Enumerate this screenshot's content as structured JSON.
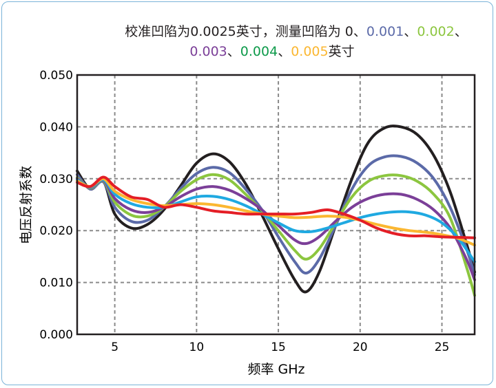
{
  "chart_data": {
    "type": "line",
    "title_line1": [
      {
        "text": "校准凹陷为0.0025英寸，测量凹陷为 0、",
        "color": "#231f20"
      },
      {
        "text": "0.001",
        "color": "#5b6aa8"
      },
      {
        "text": "、",
        "color": "#231f20"
      },
      {
        "text": "0.002",
        "color": "#8cc63f"
      },
      {
        "text": "、",
        "color": "#231f20"
      }
    ],
    "title_line2": [
      {
        "text": "0.003",
        "color": "#7b3f98"
      },
      {
        "text": "、",
        "color": "#231f20"
      },
      {
        "text": "0.004",
        "color": "#0d9a4a"
      },
      {
        "text": "、",
        "color": "#231f20"
      },
      {
        "text": "0.005",
        "color": "#fbb731"
      },
      {
        "text": "英寸",
        "color": "#231f20"
      }
    ],
    "xlabel": "频率 GHz",
    "ylabel": "电压反射系数",
    "xlim": [
      2.7,
      27
    ],
    "ylim": [
      0,
      0.05
    ],
    "xticks": [
      5,
      10,
      15,
      20,
      25
    ],
    "yticks": [
      0.0,
      0.01,
      0.02,
      0.03,
      0.04,
      0.05
    ],
    "ytick_labels": [
      "0.000",
      "0.010",
      "0.020",
      "0.030",
      "0.040",
      "0.050"
    ],
    "grid": true,
    "series": [
      {
        "color": "#231f20",
        "x": [
          2.7,
          3.5,
          4.3,
          5.0,
          6.0,
          7.0,
          8.0,
          9.0,
          10.0,
          11.0,
          12.0,
          13.0,
          14.0,
          15.0,
          16.0,
          16.7,
          17.5,
          18.5,
          19.5,
          20.5,
          21.5,
          22.5,
          23.5,
          24.5,
          25.5,
          26.5,
          27.0
        ],
        "y": [
          0.0315,
          0.028,
          0.0295,
          0.0232,
          0.0205,
          0.0212,
          0.024,
          0.0285,
          0.033,
          0.0348,
          0.0333,
          0.029,
          0.023,
          0.0165,
          0.0105,
          0.0082,
          0.012,
          0.021,
          0.03,
          0.037,
          0.0398,
          0.04,
          0.0385,
          0.0345,
          0.0275,
          0.0175,
          0.012
        ]
      },
      {
        "color": "#5b6aa8",
        "x": [
          2.7,
          3.5,
          4.3,
          5.0,
          6.0,
          7.0,
          8.0,
          9.0,
          10.0,
          11.0,
          12.0,
          13.0,
          14.0,
          15.0,
          16.0,
          16.7,
          17.5,
          18.5,
          19.5,
          20.5,
          21.5,
          22.5,
          23.5,
          24.5,
          25.5,
          26.5,
          27.0
        ],
        "y": [
          0.0308,
          0.028,
          0.0294,
          0.0245,
          0.0218,
          0.022,
          0.0245,
          0.028,
          0.031,
          0.0322,
          0.0312,
          0.028,
          0.024,
          0.0188,
          0.014,
          0.0118,
          0.0145,
          0.021,
          0.028,
          0.0325,
          0.0342,
          0.0343,
          0.033,
          0.03,
          0.0245,
          0.0165,
          0.0115
        ]
      },
      {
        "color": "#8cc63f",
        "x": [
          2.7,
          3.5,
          4.3,
          5.0,
          6.0,
          7.0,
          8.0,
          9.0,
          10.0,
          11.0,
          12.0,
          13.0,
          14.0,
          15.0,
          16.0,
          16.7,
          17.5,
          18.5,
          19.5,
          20.5,
          21.5,
          22.5,
          23.5,
          24.5,
          25.5,
          26.5,
          27.0
        ],
        "y": [
          0.0302,
          0.0282,
          0.0296,
          0.0255,
          0.023,
          0.0228,
          0.0245,
          0.0275,
          0.0298,
          0.0308,
          0.0298,
          0.027,
          0.0238,
          0.02,
          0.0162,
          0.0145,
          0.0165,
          0.0215,
          0.0265,
          0.0295,
          0.0306,
          0.0306,
          0.0295,
          0.027,
          0.0225,
          0.013,
          0.0075
        ]
      },
      {
        "color": "#7b3f98",
        "x": [
          2.7,
          3.5,
          4.3,
          5.0,
          6.0,
          7.0,
          8.0,
          9.0,
          10.0,
          11.0,
          12.0,
          13.0,
          14.0,
          15.0,
          16.0,
          16.7,
          17.5,
          18.5,
          19.5,
          20.5,
          21.5,
          22.5,
          23.5,
          24.5,
          25.5,
          26.5,
          27.0
        ],
        "y": [
          0.03,
          0.0283,
          0.0297,
          0.0262,
          0.024,
          0.0235,
          0.0245,
          0.0265,
          0.028,
          0.0285,
          0.0278,
          0.0262,
          0.024,
          0.021,
          0.0182,
          0.0175,
          0.0188,
          0.0218,
          0.0245,
          0.0262,
          0.027,
          0.027,
          0.026,
          0.024,
          0.0205,
          0.0145,
          0.0105
        ]
      },
      {
        "color": "#1fa9e1",
        "x": [
          2.7,
          3.5,
          4.3,
          5.0,
          6.0,
          7.0,
          8.0,
          9.0,
          10.0,
          11.0,
          12.0,
          13.0,
          14.0,
          15.0,
          16.0,
          17.0,
          18.0,
          19.0,
          20.0,
          21.0,
          22.0,
          23.0,
          24.0,
          25.0,
          26.0,
          27.0
        ],
        "y": [
          0.0298,
          0.0284,
          0.0298,
          0.027,
          0.0252,
          0.0245,
          0.0245,
          0.0255,
          0.0265,
          0.0266,
          0.026,
          0.0248,
          0.0232,
          0.0215,
          0.02,
          0.0198,
          0.0205,
          0.0215,
          0.0225,
          0.0232,
          0.0236,
          0.0236,
          0.023,
          0.0215,
          0.0185,
          0.014
        ]
      },
      {
        "color": "#fbb731",
        "x": [
          2.7,
          3.5,
          4.3,
          5.0,
          6.0,
          7.0,
          8.0,
          9.0,
          10.0,
          11.0,
          12.0,
          13.0,
          14.0,
          15.0,
          16.0,
          17.0,
          18.0,
          19.0,
          20.0,
          21.0,
          22.0,
          23.0,
          24.0,
          25.0,
          26.0,
          27.0
        ],
        "y": [
          0.0296,
          0.0285,
          0.03,
          0.0276,
          0.026,
          0.0252,
          0.0248,
          0.025,
          0.0252,
          0.025,
          0.0245,
          0.0238,
          0.0232,
          0.0228,
          0.0225,
          0.0226,
          0.0228,
          0.0226,
          0.022,
          0.0212,
          0.0205,
          0.02,
          0.0197,
          0.0192,
          0.0185,
          0.0172
        ]
      },
      {
        "color": "#e41e26",
        "x": [
          2.7,
          3.5,
          4.3,
          5.0,
          6.0,
          7.0,
          8.0,
          9.0,
          10.0,
          11.0,
          12.0,
          13.0,
          14.0,
          15.0,
          16.0,
          17.0,
          18.0,
          19.0,
          20.0,
          21.0,
          22.0,
          23.0,
          24.0,
          25.0,
          26.0,
          27.0
        ],
        "y": [
          0.0293,
          0.0285,
          0.0303,
          0.0285,
          0.0265,
          0.026,
          0.0245,
          0.025,
          0.0245,
          0.0238,
          0.0235,
          0.0232,
          0.0232,
          0.0232,
          0.0232,
          0.0235,
          0.024,
          0.0232,
          0.022,
          0.0205,
          0.0195,
          0.019,
          0.019,
          0.0188,
          0.0187,
          0.0186
        ]
      }
    ]
  }
}
